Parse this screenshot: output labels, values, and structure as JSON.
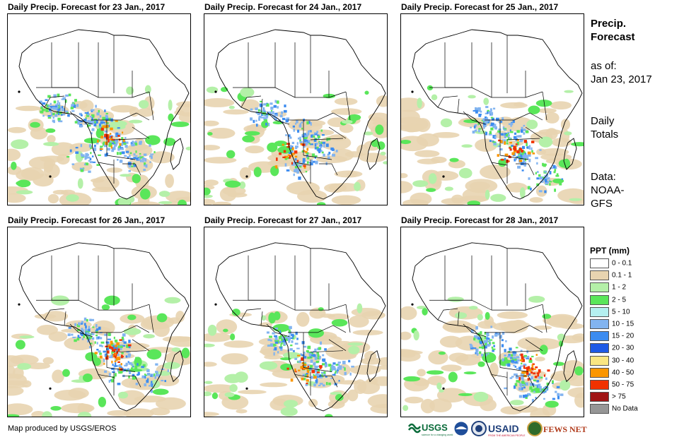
{
  "panels": [
    {
      "title": "Daily Precip. Forecast for 23 Jan., 2017"
    },
    {
      "title": "Daily Precip. Forecast for 24 Jan., 2017"
    },
    {
      "title": "Daily Precip. Forecast for 25 Jan., 2017"
    },
    {
      "title": "Daily Precip. Forecast for 26 Jan., 2017"
    },
    {
      "title": "Daily Precip. Forecast for 27 Jan., 2017"
    },
    {
      "title": "Daily Precip. Forecast for 28 Jan., 2017"
    }
  ],
  "sidebar": {
    "title_line1": "Precip.",
    "title_line2": "Forecast",
    "asof_label": "as of:",
    "asof_date": "Jan 23, 2017",
    "totals_line1": "Daily",
    "totals_line2": "Totals",
    "data_line1": "Data:",
    "data_line2": "NOAA-",
    "data_line3": "GFS"
  },
  "legend": {
    "title": "PPT (mm)",
    "items": [
      {
        "label": "0 - 0.1",
        "color": "#ffffff"
      },
      {
        "label": "0.1 - 1",
        "color": "#e8d4b0"
      },
      {
        "label": "1 - 2",
        "color": "#b4f0a8"
      },
      {
        "label": "2 - 5",
        "color": "#5ae65a"
      },
      {
        "label": "5 - 10",
        "color": "#b4f0f0"
      },
      {
        "label": "10 - 15",
        "color": "#82b4f0"
      },
      {
        "label": "15 - 20",
        "color": "#3c8cf0"
      },
      {
        "label": "20 - 30",
        "color": "#1e5ae6"
      },
      {
        "label": "30 - 40",
        "color": "#fae682"
      },
      {
        "label": "40 - 50",
        "color": "#fa9600"
      },
      {
        "label": "50 - 75",
        "color": "#f03200"
      },
      {
        "label": "> 75",
        "color": "#a01414"
      },
      {
        "label": "No Data",
        "color": "#969696"
      }
    ]
  },
  "footer": {
    "credit": "Map produced by USGS/EROS"
  },
  "logos": {
    "usgs": "USGS",
    "usgs_tagline": "science for a changing world",
    "usaid": "USAID",
    "usaid_tagline": "FROM THE AMERICAN PEOPLE",
    "fewsnet": "FEWS NET"
  }
}
